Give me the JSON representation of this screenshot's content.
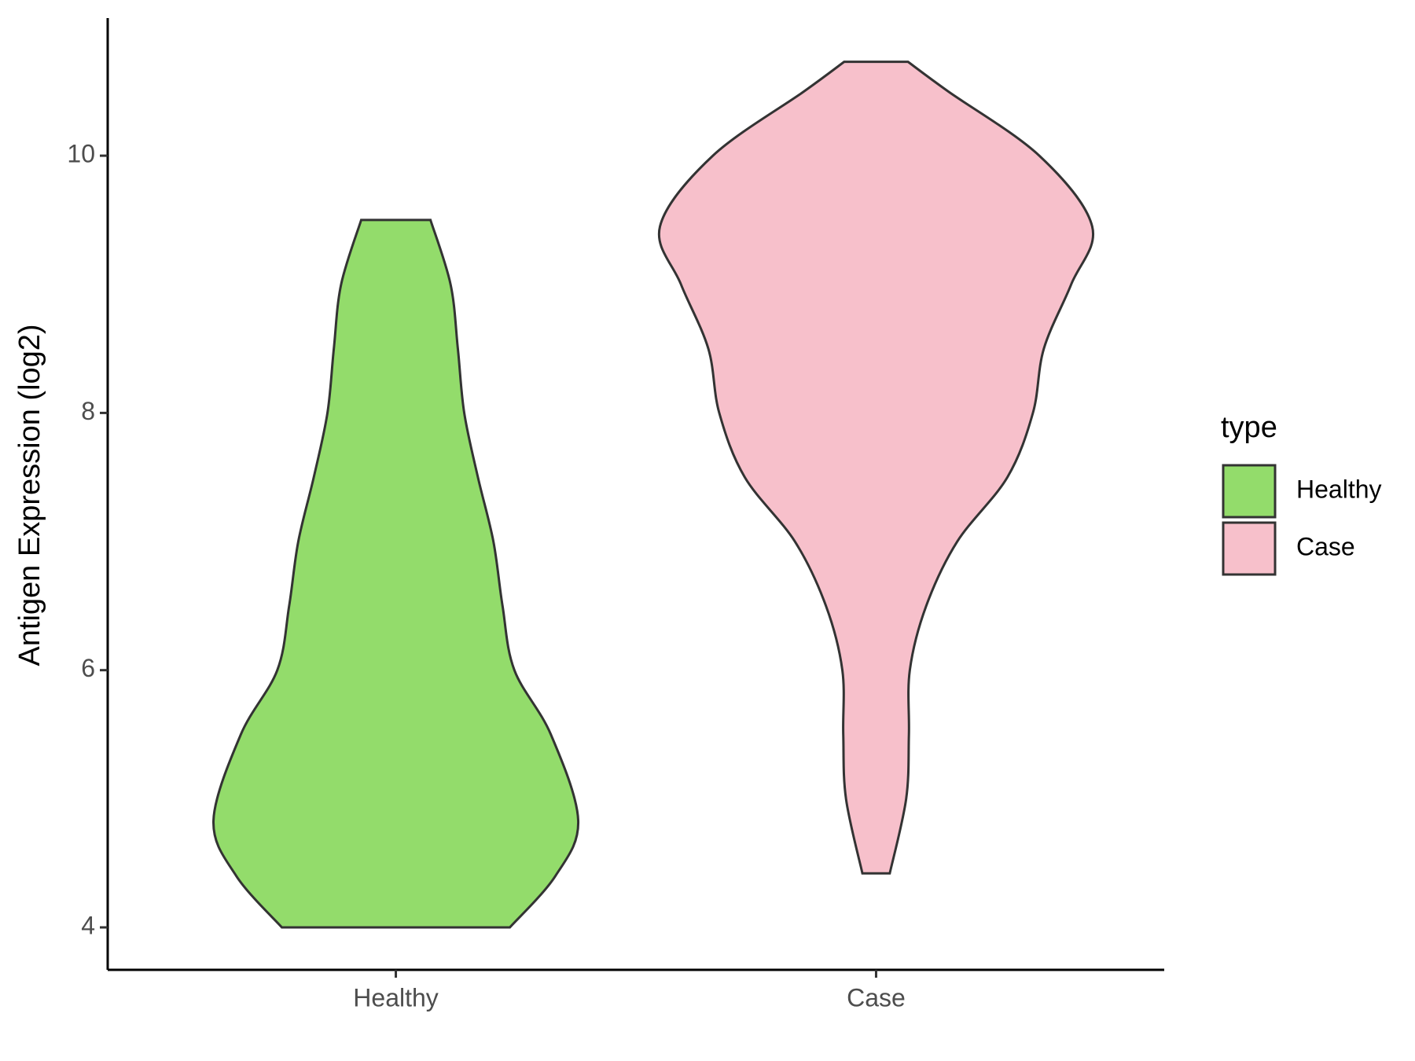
{
  "chart_data": {
    "type": "violin",
    "y_label": "Antigen Expression (log2)",
    "categories": [
      "Healthy",
      "Case"
    ],
    "series": [
      {
        "name": "Healthy",
        "color": "#93dc6b",
        "y": [
          4.0,
          4.4,
          4.83,
          5.5,
          6.0,
          6.5,
          7.0,
          7.5,
          8.0,
          8.5,
          9.0,
          9.5
        ],
        "density": [
          1.25,
          1.75,
          2.0,
          1.7,
          1.3,
          1.17,
          1.07,
          0.9,
          0.75,
          0.68,
          0.6,
          0.38
        ]
      },
      {
        "name": "Case",
        "color": "#f7c0cb",
        "y": [
          4.42,
          5.0,
          5.5,
          6.0,
          6.5,
          7.0,
          7.5,
          8.0,
          8.5,
          9.0,
          9.45,
          10.0,
          10.5,
          10.73
        ],
        "density": [
          0.15,
          0.33,
          0.36,
          0.37,
          0.55,
          0.89,
          1.44,
          1.72,
          1.84,
          2.14,
          2.37,
          1.79,
          0.79,
          0.35
        ]
      }
    ],
    "ylim": [
      3.67,
      11.07
    ],
    "yticks": [
      4,
      6,
      8,
      10
    ],
    "legend_title": "type",
    "legend_position": "right"
  }
}
